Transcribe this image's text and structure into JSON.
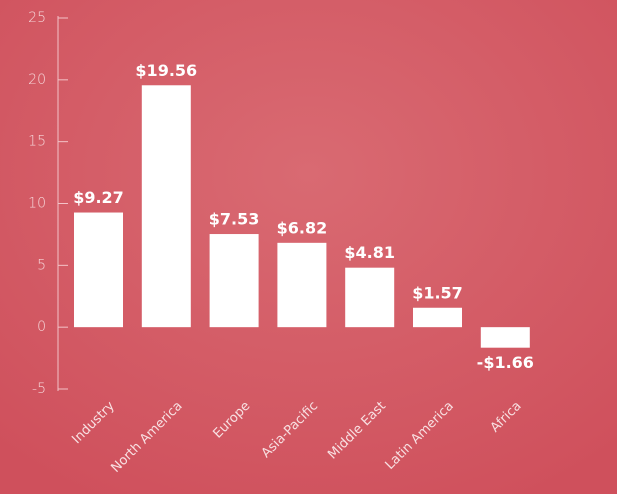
{
  "chart_data": {
    "type": "bar",
    "categories": [
      "Industry",
      "North America",
      "Europe",
      "Asia-Pacific",
      "Middle East",
      "Latin America",
      "Africa"
    ],
    "values": [
      9.27,
      19.56,
      7.53,
      6.82,
      4.81,
      1.57,
      -1.66
    ],
    "value_labels": [
      "$9.27",
      "$19.56",
      "$7.53",
      "$6.82",
      "$4.81",
      "$1.57",
      "-$1.66"
    ],
    "color": "#ffffff",
    "ylim": [
      -5,
      25
    ],
    "yticks": [
      -5,
      0,
      5,
      10,
      15,
      20,
      25
    ],
    "grid": false
  }
}
